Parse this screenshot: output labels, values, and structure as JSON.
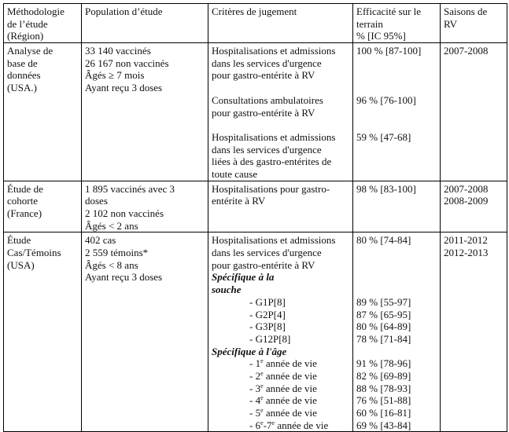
{
  "header": [
    "Méthodologie de l’étude (Région)",
    "Population d’étude",
    "Critères de jugement",
    "Efficacité sur le terrain % [IC 95%]",
    "Saisons de RV"
  ],
  "header_lines": [
    [
      "Méthodologie",
      "de l’étude",
      "(Région)"
    ],
    [
      "Population d’étude"
    ],
    [
      "Critères de jugement"
    ],
    [
      "Efficacité sur le",
      "terrain",
      "% [IC 95%]"
    ],
    [
      "Saisons de",
      "RV"
    ]
  ],
  "rows": [
    {
      "method": [
        "Analyse de",
        "base de",
        "données",
        "(USA.)"
      ],
      "population": [
        "33 140 vaccinés",
        "26 167 non vaccinés",
        "Âgés ≥ 7 mois",
        "Ayant reçu 3 doses"
      ],
      "lines": [
        {
          "text": "Hospitalisations et admissions",
          "value": "100 % [87-100]"
        },
        {
          "text": "dans les services d'urgence",
          "value": ""
        },
        {
          "text": "pour gastro-entérite à RV",
          "value": ""
        },
        {
          "text": "",
          "value": ""
        },
        {
          "text": "Consultations ambulatoires",
          "value": "96 % [76-100]"
        },
        {
          "text": "pour gastro-entérite à RV",
          "value": ""
        },
        {
          "text": "",
          "value": ""
        },
        {
          "text": "Hospitalisations et admissions",
          "value": "59 % [47-68]"
        },
        {
          "text": "dans les services d'urgence",
          "value": ""
        },
        {
          "text": "liées à des gastro-entérites de",
          "value": ""
        },
        {
          "text": "toute cause",
          "value": ""
        }
      ],
      "seasons": [
        "2007-2008"
      ]
    },
    {
      "method": [
        "Étude de",
        "cohorte",
        "(France)"
      ],
      "population": [
        "1 895 vaccinés avec 3",
        "doses",
        "2 102 non vaccinés",
        "Âgés < 2 ans"
      ],
      "lines": [
        {
          "text": "Hospitalisations pour gastro-",
          "value": "98 % [83-100]"
        },
        {
          "text": "entérite à RV",
          "value": ""
        }
      ],
      "seasons": [
        "2007-2008",
        "2008-2009"
      ]
    },
    {
      "method": [
        "Étude",
        "Cas/Témoins",
        "(USA)"
      ],
      "population": [
        "402 cas",
        "2 559 témoins*",
        "Âgés < 8 ans",
        "Ayant reçu 3 doses"
      ],
      "lines": [
        {
          "text": "Hospitalisations et admissions",
          "value": "80 % [74-84]"
        },
        {
          "text": "dans les services d'urgence",
          "value": ""
        },
        {
          "text": "pour gastro-entérite à RV",
          "value": ""
        },
        {
          "text": "Spécifique à la",
          "value": "",
          "style": "bi"
        },
        {
          "text": "souche",
          "value": "",
          "style": "bi"
        },
        {
          "text": "- G1P[8]",
          "value": "89 % [55-97]",
          "style": "ind"
        },
        {
          "text": "- G2P[4]",
          "value": "87 % [65-95]",
          "style": "ind"
        },
        {
          "text": "- G3P[8]",
          "value": "80 % [64-89]",
          "style": "ind"
        },
        {
          "text": "- G12P[8]",
          "value": "78 % [71-84]",
          "style": "ind"
        },
        {
          "text": "Spécifique à l'âge",
          "value": "",
          "style": "bi"
        },
        {
          "pre": "- 1",
          "sup": "e",
          "text": " année de vie",
          "value": "91 % [78-96]",
          "style": "ind"
        },
        {
          "pre": "- 2",
          "sup": "e",
          "text": " année de vie",
          "value": "82 % [69-89]",
          "style": "ind"
        },
        {
          "pre": "- 3",
          "sup": "e",
          "text": " année de vie",
          "value": "88 % [78-93]",
          "style": "ind"
        },
        {
          "pre": "- 4",
          "sup": "e",
          "text": " année de vie",
          "value": "76 % [51-88]",
          "style": "ind"
        },
        {
          "pre": "- 5",
          "sup": "e",
          "text": " année de vie",
          "value": "60 % [16-81]",
          "style": "ind"
        },
        {
          "pre": "- 6",
          "sup": "e",
          "mid": "-7",
          "sup2": "e",
          "text": " année de vie",
          "value": "69 % [43-84]",
          "style": "ind"
        }
      ],
      "seasons": [
        "2011-2012",
        "2012-2013"
      ]
    }
  ]
}
